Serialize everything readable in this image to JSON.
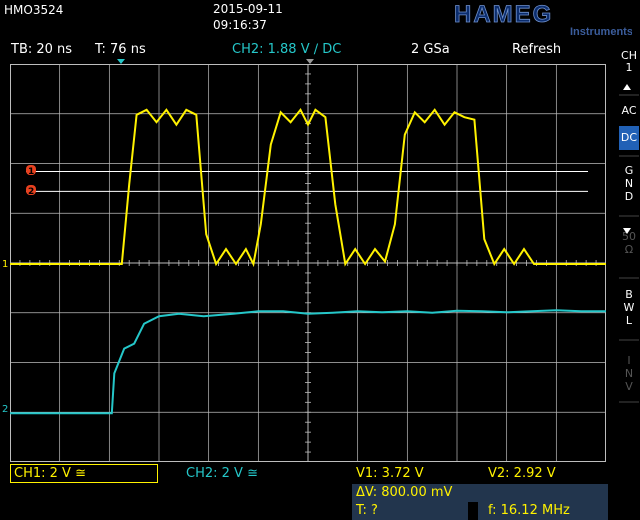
{
  "header": {
    "model": "HMO3524",
    "date": "2015-09-11",
    "time": "09:16:37",
    "brand": "HAMEG",
    "brand_sub": "Instruments"
  },
  "status": {
    "timebase": "TB: 20 ns",
    "trigger_time": "T: 76 ns",
    "trigger_info": "CH2: 1.88 V ∕ DC",
    "sample_rate": "2 GSa",
    "mode": "Refresh"
  },
  "sidebar": {
    "channel": "CH\n1",
    "items": [
      {
        "label": "AC",
        "active": false
      },
      {
        "label": "DC",
        "active": true
      },
      {
        "label": "G\nN\nD",
        "active": false
      },
      {
        "label": "50\nΩ",
        "active": false
      },
      {
        "label": "B\nW\nL",
        "active": false
      },
      {
        "label": "I\nN\nV",
        "active": false
      }
    ]
  },
  "markers": {
    "cursor1": "1",
    "cursor2": "2",
    "ch1": "1",
    "ch2": "2"
  },
  "colors": {
    "ch1": "#fff200",
    "ch2": "#25c7c9",
    "grid": "#bdbdbd",
    "cursor": "#ffffff",
    "marker": "#e8411f"
  },
  "bottom": {
    "ch1_scale": "CH1: 2 V ≅",
    "ch2_scale": "CH2: 2 V ≅",
    "v1": "V1: 3.72 V",
    "v2": "V2: 2.92 V",
    "dv": "ΔV: 800.00 mV",
    "t": "T: ?",
    "f": "f: 16.12 MHz"
  },
  "chart_data": {
    "type": "line",
    "title": "",
    "xlabel": "",
    "ylabel": "",
    "x_unit_per_div": "20 ns",
    "y_unit_per_div": "2 V",
    "divisions": {
      "x": 12,
      "y": 8
    },
    "grid": true,
    "cursors": {
      "v1": 3.72,
      "v2": 2.92
    },
    "series": [
      {
        "name": "CH1",
        "x_div": [
          0,
          2.25,
          2.4,
          2.55,
          2.75,
          2.95,
          3.15,
          3.35,
          3.55,
          3.75,
          3.95,
          4.15,
          4.35,
          4.55,
          4.75,
          4.9,
          5.05,
          5.25,
          5.45,
          5.65,
          5.85,
          6.0,
          6.15,
          6.35,
          6.55,
          6.75,
          6.95,
          7.15,
          7.35,
          7.55,
          7.75,
          7.95,
          8.15,
          8.35,
          8.55,
          8.75,
          8.95,
          9.15,
          9.35,
          9.55,
          9.75,
          9.95,
          10.15,
          10.35,
          10.55,
          10.75,
          10.95,
          11.15,
          11.35,
          11.6,
          12
        ],
        "y_div": [
          0.0,
          0.0,
          1.6,
          3.0,
          3.1,
          2.85,
          3.1,
          2.8,
          3.1,
          3.0,
          0.6,
          0.0,
          0.3,
          0.0,
          0.3,
          0.0,
          0.8,
          2.4,
          3.05,
          2.85,
          3.1,
          2.8,
          3.1,
          2.95,
          1.2,
          0.0,
          0.3,
          0.0,
          0.3,
          0.05,
          0.8,
          2.6,
          3.05,
          2.85,
          3.1,
          2.8,
          3.05,
          2.95,
          2.9,
          0.5,
          0.0,
          0.3,
          0.0,
          0.3,
          0.0,
          0.0,
          0.0,
          0.0,
          0.0,
          0.0,
          0.0
        ]
      },
      {
        "name": "CH2",
        "x_div": [
          0,
          1.5,
          2.05,
          2.1,
          2.3,
          2.5,
          2.7,
          3.0,
          3.4,
          3.9,
          4.5,
          5.0,
          5.5,
          6.0,
          6.5,
          7.0,
          7.5,
          8.0,
          8.5,
          9.0,
          9.5,
          10.0,
          10.5,
          11.0,
          11.5,
          12
        ],
        "y_div": [
          -3.0,
          -3.0,
          -3.0,
          -2.2,
          -1.7,
          -1.6,
          -1.2,
          -1.05,
          -1.0,
          -1.05,
          -1.0,
          -0.95,
          -0.95,
          -1.0,
          -0.98,
          -0.95,
          -0.97,
          -0.95,
          -0.98,
          -0.94,
          -0.95,
          -0.97,
          -0.95,
          -0.93,
          -0.95,
          -0.95
        ]
      }
    ]
  }
}
